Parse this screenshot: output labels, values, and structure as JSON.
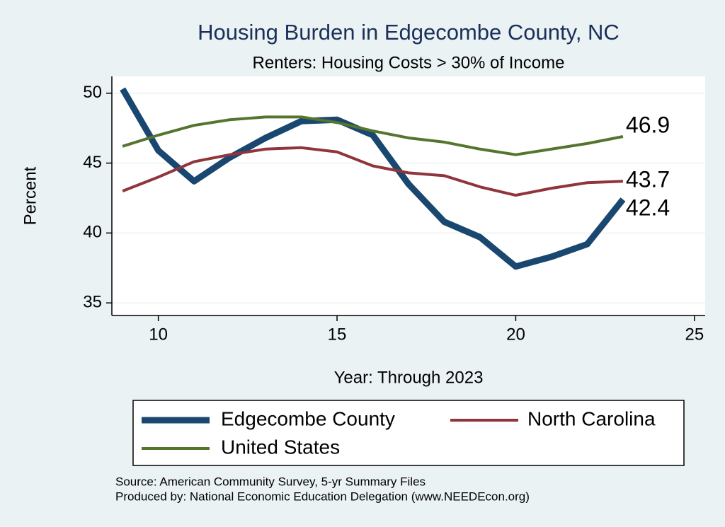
{
  "chart_data": {
    "type": "line",
    "title": "Housing Burden in Edgecombe County, NC",
    "subtitle": "Renters: Housing Costs > 30% of Income",
    "x_label": "Year: Through 2023",
    "y_label": "Percent",
    "x": [
      9,
      10,
      11,
      12,
      13,
      14,
      15,
      16,
      17,
      18,
      19,
      20,
      21,
      22,
      23
    ],
    "series": [
      {
        "name": "Edgecombe County",
        "color": "#1a476f",
        "width": 9,
        "values": [
          50.3,
          45.9,
          43.7,
          45.4,
          46.8,
          48.0,
          48.1,
          47.0,
          43.5,
          40.8,
          39.7,
          37.6,
          38.3,
          39.2,
          42.4
        ]
      },
      {
        "name": "North Carolina",
        "color": "#90353b",
        "width": 4,
        "values": [
          43.0,
          44.0,
          45.1,
          45.6,
          46.0,
          46.1,
          45.8,
          44.8,
          44.3,
          44.1,
          43.3,
          42.7,
          43.2,
          43.6,
          43.7
        ]
      },
      {
        "name": "United States",
        "color": "#55752f",
        "width": 4,
        "values": [
          46.2,
          47.0,
          47.7,
          48.1,
          48.3,
          48.3,
          47.9,
          47.3,
          46.8,
          46.5,
          46.0,
          45.6,
          46.0,
          46.4,
          46.9
        ]
      }
    ],
    "xlim": [
      8.7,
      25.3
    ],
    "ylim": [
      34.1,
      51.2
    ],
    "xticks": [
      10,
      15,
      20,
      25
    ],
    "yticks": [
      35,
      40,
      45,
      50
    ],
    "grid": true,
    "notes": [
      "Source: American Community Survey, 5-yr Summary Files",
      "Produced by: National Economic Education Delegation (www.NEEDEcon.org)"
    ]
  }
}
